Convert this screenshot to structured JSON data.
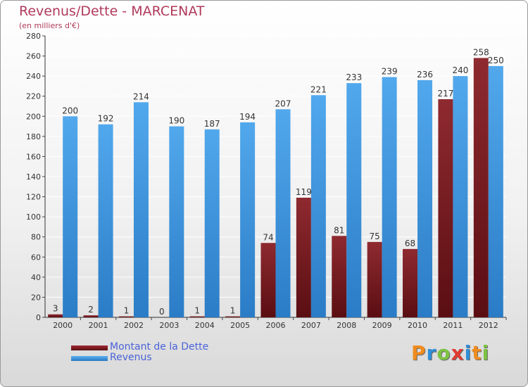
{
  "header": {
    "title": "Revenus/Dette - MARCENAT",
    "subtitle": "(en milliers d'€)"
  },
  "chart_data": {
    "type": "bar",
    "title": "Revenus/Dette - MARCENAT",
    "subtitle": "(en milliers d'€)",
    "categories": [
      "2000",
      "2001",
      "2002",
      "2003",
      "2004",
      "2005",
      "2006",
      "2007",
      "2008",
      "2009",
      "2010",
      "2011",
      "2012"
    ],
    "series": [
      {
        "name": "Montant de la Dette",
        "color": "#7a1a1f",
        "values": [
          3,
          2,
          1,
          0,
          1,
          1,
          74,
          119,
          81,
          75,
          68,
          217,
          258
        ]
      },
      {
        "name": "Revenus",
        "color": "#3d8fdb",
        "values": [
          200,
          192,
          214,
          190,
          187,
          194,
          207,
          221,
          233,
          239,
          236,
          240,
          250
        ]
      }
    ],
    "ylim": [
      0,
      280
    ],
    "ytick_step": 20,
    "grid": true,
    "legend_position": "bottom-left"
  },
  "legend": {
    "items": [
      {
        "label": "Montant de la Dette",
        "color": "#7a1a1f"
      },
      {
        "label": "Revenus",
        "color": "#3d8fdb"
      }
    ]
  },
  "logo": {
    "text": "Proxiti",
    "letters": [
      {
        "ch": "P",
        "color": "#f08c1e"
      },
      {
        "ch": "r",
        "color": "#2f8ed8"
      },
      {
        "ch": "o",
        "color": "#7cc243"
      },
      {
        "ch": "x",
        "color": "#e03c32"
      },
      {
        "ch": "i",
        "color": "#2f8ed8"
      },
      {
        "ch": "t",
        "color": "#f08c1e"
      },
      {
        "ch": "i",
        "color": "#7cc243"
      }
    ]
  }
}
